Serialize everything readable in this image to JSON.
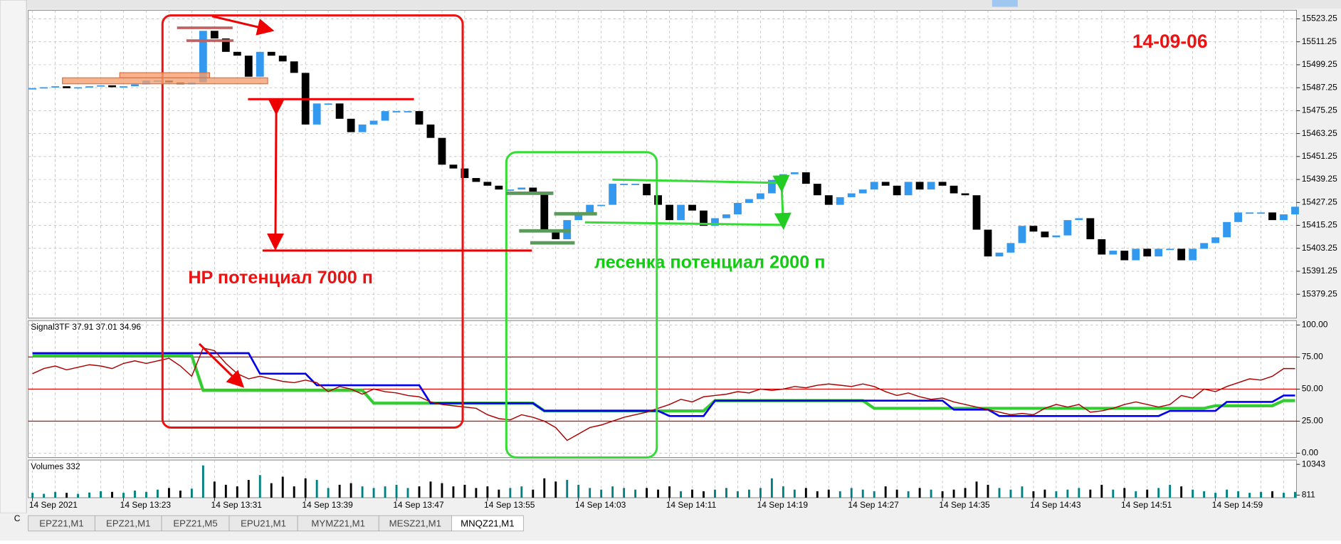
{
  "chart_data": [
    {
      "type": "candlestick",
      "title": "14-09-06",
      "annotations": [
        "HP потенциал 7000 п",
        "лесенка потенциал 2000 п"
      ],
      "categories": [
        "14 Sep 2021",
        null,
        null,
        null,
        null,
        null,
        null,
        null,
        "14 Sep 13:23",
        null,
        null,
        null,
        null,
        null,
        null,
        null,
        "14 Sep 13:31",
        null,
        null,
        null,
        null,
        null,
        null,
        null,
        "14 Sep 13:39",
        null,
        null,
        null,
        null,
        null,
        null,
        null,
        "14 Sep 13:47",
        null,
        null,
        null,
        null,
        null,
        null,
        null,
        "14 Sep 13:55",
        null,
        null,
        null,
        null,
        null,
        null,
        null,
        "14 Sep 14:03",
        null,
        null,
        null,
        null,
        null,
        null,
        null,
        "14 Sep 14:11",
        null,
        null,
        null,
        null,
        null,
        null,
        null,
        "14 Sep 14:19",
        null,
        null,
        null,
        null,
        null,
        null,
        null,
        "14 Sep 14:27",
        null,
        null,
        null,
        null,
        null,
        null,
        null,
        "14 Sep 14:35",
        null,
        null,
        null,
        null,
        null,
        null,
        null,
        "14 Sep 14:43",
        null,
        null,
        null,
        null,
        null,
        null,
        null,
        "14 Sep 14:51",
        null,
        null,
        null,
        null,
        null,
        null,
        null,
        "14 Sep 14:59",
        null,
        null,
        null,
        null,
        null,
        null,
        null
      ],
      "close": [
        15487,
        15487.5,
        15488,
        15487,
        15487.5,
        15488,
        15488.5,
        15487.5,
        15488,
        15489,
        15491,
        15491,
        15490,
        15489,
        15490,
        15517,
        15513,
        15506,
        15504,
        15493,
        15506,
        15504,
        15501,
        15495,
        15468,
        15479,
        15479,
        15471,
        15464,
        15468,
        15470,
        15475,
        15475,
        15475,
        15468,
        15461,
        15447,
        15445,
        15440,
        15438,
        15436,
        15434,
        15434,
        15435,
        15432,
        15412,
        15408,
        15418,
        15421,
        15426,
        15426,
        15437,
        15437,
        15437,
        15431,
        15426,
        15418,
        15426,
        15423,
        15415,
        15419,
        15421,
        15427,
        15429,
        15432,
        15439,
        15442,
        15443,
        15437,
        15431,
        15426,
        15430,
        15432,
        15434,
        15438,
        15436,
        15431,
        15438,
        15434,
        15438,
        15436,
        15432,
        15431,
        15413,
        15399,
        15401,
        15406,
        15415,
        15412,
        15409,
        15410,
        15418,
        15419,
        15408,
        15400,
        15402,
        15397,
        15403,
        15399,
        15403,
        15403,
        15397,
        15403,
        15406,
        15409,
        15417,
        15422,
        15422,
        15422,
        15418,
        15421,
        15425
      ],
      "up_color": "#3399ee",
      "down_color": "#000000",
      "ylim": [
        15366.75,
        15527.75
      ],
      "yticks": [
        15523.25,
        15511.25,
        15499.25,
        15487.25,
        15475.25,
        15463.25,
        15451.25,
        15439.25,
        15427.25,
        15415.25,
        15403.25,
        15391.25,
        15379.25
      ],
      "grid": true
    },
    {
      "type": "line",
      "title": "Signal3TF 37.91 37.01 34.96",
      "series": [
        {
          "color": "#33cc33",
          "values": [
            76,
            76,
            76,
            76,
            76,
            76,
            76,
            76,
            76,
            76,
            76,
            76,
            76,
            76,
            76,
            49,
            49,
            49,
            49,
            49,
            49,
            49,
            49,
            49,
            49,
            49,
            49,
            49,
            49,
            49,
            39,
            39,
            39,
            39,
            39,
            39,
            39,
            39,
            39,
            39,
            39,
            39,
            39,
            39,
            39,
            33,
            33,
            33,
            33,
            33,
            33,
            33,
            33,
            33,
            33,
            33,
            33,
            33,
            33,
            33,
            41,
            41,
            41,
            41,
            41,
            41,
            41,
            41,
            41,
            41,
            41,
            41,
            41,
            41,
            35,
            35,
            35,
            35,
            35,
            35,
            35,
            35,
            35,
            35,
            35,
            35,
            35,
            35,
            35,
            35,
            35,
            35,
            35,
            35,
            35,
            35,
            35,
            35,
            35,
            35,
            35,
            35,
            35,
            35,
            37,
            37,
            37,
            37,
            37,
            37,
            41,
            41
          ]
        },
        {
          "color": "#0000ee",
          "values": [
            78,
            78,
            78,
            78,
            78,
            78,
            78,
            78,
            78,
            78,
            78,
            78,
            78,
            78,
            78,
            78,
            78,
            78,
            78,
            78,
            62,
            62,
            62,
            62,
            62,
            53,
            53,
            53,
            53,
            53,
            53,
            53,
            53,
            53,
            53,
            39,
            39,
            39,
            39,
            39,
            39,
            39,
            39,
            39,
            39,
            33,
            33,
            33,
            33,
            33,
            33,
            33,
            33,
            33,
            33,
            33,
            29,
            29,
            29,
            29,
            41,
            41,
            41,
            41,
            41,
            41,
            41,
            41,
            41,
            41,
            41,
            41,
            41,
            41,
            41,
            41,
            41,
            41,
            41,
            41,
            41,
            34,
            34,
            34,
            34,
            29,
            29,
            29,
            29,
            29,
            29,
            29,
            29,
            29,
            29,
            29,
            29,
            29,
            29,
            29,
            33,
            33,
            33,
            33,
            33,
            40,
            40,
            40,
            40,
            40,
            45,
            45
          ]
        },
        {
          "color": "#aa0000",
          "values": [
            62,
            66,
            68,
            65,
            67,
            69,
            68,
            66,
            70,
            72,
            70,
            72,
            74,
            68,
            60,
            82,
            80,
            70,
            62,
            58,
            60,
            58,
            56,
            55,
            57,
            55,
            48,
            52,
            50,
            46,
            50,
            48,
            47,
            45,
            44,
            40,
            38,
            37,
            36,
            35,
            30,
            27,
            26,
            30,
            28,
            25,
            20,
            10,
            15,
            20,
            22,
            25,
            28,
            30,
            32,
            35,
            38,
            42,
            40,
            44,
            45,
            46,
            48,
            47,
            50,
            49,
            50,
            52,
            51,
            53,
            54,
            53,
            52,
            54,
            52,
            48,
            45,
            47,
            44,
            42,
            43,
            40,
            38,
            36,
            34,
            32,
            30,
            31,
            30,
            35,
            38,
            36,
            38,
            32,
            33,
            35,
            38,
            40,
            38,
            36,
            38,
            45,
            43,
            50,
            48,
            52,
            55,
            58,
            57,
            60,
            66,
            66
          ]
        }
      ],
      "levels": [
        25,
        50,
        75
      ],
      "level_color": "#dd0000",
      "ylim": [
        0,
        100
      ],
      "yticks": [
        {
          "value": 100,
          "label": "100.00"
        },
        {
          "value": 75,
          "label": "75.00"
        },
        {
          "value": 50,
          "label": "50.00"
        },
        {
          "value": 25,
          "label": "25.00"
        },
        {
          "value": 0,
          "label": "0.00"
        }
      ],
      "grid": true
    },
    {
      "type": "bar",
      "title": "Volumes 332",
      "values": [
        1500,
        1200,
        1800,
        1500,
        1200,
        1600,
        2000,
        1800,
        1500,
        2200,
        1800,
        2500,
        3000,
        2200,
        2800,
        10000,
        5000,
        4000,
        3500,
        5500,
        7000,
        4500,
        6500,
        3500,
        6000,
        5500,
        3000,
        4000,
        4500,
        3500,
        3000,
        3500,
        4000,
        3000,
        3500,
        5000,
        4500,
        3500,
        4000,
        3000,
        3500,
        2500,
        3000,
        3500,
        2500,
        6000,
        5000,
        5500,
        4000,
        3000,
        2500,
        3500,
        3000,
        2500,
        3000,
        2500,
        3500,
        2000,
        2500,
        2000,
        2500,
        3000,
        2000,
        2500,
        3000,
        6000,
        3500,
        2500,
        3000,
        2000,
        2500,
        2000,
        3000,
        2500,
        2000,
        3500,
        2500,
        2000,
        3000,
        2500,
        2000,
        2500,
        3000,
        5000,
        4000,
        3000,
        2500,
        3500,
        2000,
        2500,
        2000,
        2500,
        3000,
        2500,
        4000,
        2500,
        3000,
        2000,
        2500,
        3000,
        4000,
        3500,
        2500,
        2000,
        1500,
        2500,
        2000,
        1500,
        1800,
        2000,
        1500,
        1800
      ],
      "up_color": "#008080",
      "down_color": "#000000",
      "ylim": [
        0,
        10343
      ],
      "yticks": [
        10343,
        811
      ],
      "grid": true
    }
  ],
  "tabs": [
    "EPZ21,M1",
    "EPZ21,M1",
    "EPZ21,M5",
    "EPU21,M1",
    "MYMZ21,M1",
    "MESZ21,M1",
    "MNQZ21,M1"
  ],
  "side_label": "C"
}
